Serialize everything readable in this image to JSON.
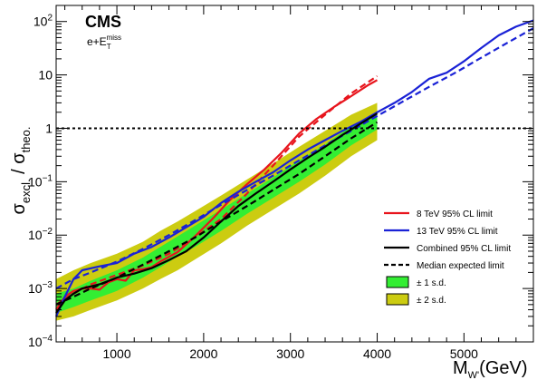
{
  "experiment_label": "CMS",
  "channel_label": {
    "base": "e+E",
    "sub": "T",
    "sup": "miss"
  },
  "axis_titles": {
    "x": {
      "main": "M",
      "sub": "W'",
      "unit": "(GeV)"
    },
    "y": {
      "sigma1": "σ",
      "sub1": "excl.",
      "slash": " / ",
      "sigma2": "σ",
      "sub2": "theo."
    }
  },
  "legend": [
    {
      "key": "obs8",
      "label": "8 TeV 95% CL limit",
      "kind": "line",
      "color": "#e8141c",
      "dash": false
    },
    {
      "key": "obs13",
      "label": "13 TeV 95% CL limit",
      "kind": "line",
      "color": "#1a22d6",
      "dash": false
    },
    {
      "key": "comb",
      "label": "Combined 95% CL limit",
      "kind": "line",
      "color": "#000000",
      "dash": false
    },
    {
      "key": "exp",
      "label": "Median expected limit",
      "kind": "line",
      "color": "#000000",
      "dash": true
    },
    {
      "key": "band1",
      "label": "± 1 s.d.",
      "kind": "box",
      "color": "#33ee33"
    },
    {
      "key": "band2",
      "label": "± 2 s.d.",
      "kind": "box",
      "color": "#cccc11"
    }
  ],
  "chart_data": {
    "type": "line",
    "x_axis": {
      "min": 300,
      "max": 5800,
      "scale": "linear",
      "ticks": [
        1000,
        2000,
        3000,
        4000,
        5000
      ],
      "tick_labels": [
        "1000",
        "2000",
        "3000",
        "4000",
        "5000"
      ]
    },
    "y_axis": {
      "min": 0.0001,
      "max": 200,
      "scale": "log",
      "ticks": [
        0.0001,
        0.001,
        0.01,
        0.1,
        1,
        10,
        100
      ],
      "tick_labels": [
        {
          "base": "10",
          "exp": "−4"
        },
        {
          "base": "10",
          "exp": "−3"
        },
        {
          "base": "10",
          "exp": "−2"
        },
        {
          "base": "10",
          "exp": "−1"
        },
        {
          "text": "1"
        },
        {
          "text": "10"
        },
        {
          "base": "10",
          "exp": "2"
        }
      ]
    },
    "reference_line": {
      "y": 1,
      "style": "dotted",
      "color": "#000000"
    },
    "legend_position": "bottom-right",
    "series": [
      {
        "name": "8 TeV 95% CL limit",
        "key": "obs8",
        "color": "#e8141c",
        "dash": false,
        "x": [
          300,
          400,
          500,
          600,
          700,
          800,
          900,
          1000,
          1100,
          1200,
          1300,
          1400,
          1500,
          1700,
          1900,
          2100,
          2300,
          2500,
          2700,
          2900,
          3100,
          3300,
          3500,
          3700,
          3900,
          4000
        ],
        "y": [
          0.0004,
          0.0007,
          0.0009,
          0.001,
          0.001,
          0.00095,
          0.0013,
          0.0015,
          0.0014,
          0.0022,
          0.0023,
          0.0025,
          0.0032,
          0.0048,
          0.0095,
          0.02,
          0.045,
          0.09,
          0.17,
          0.35,
          0.8,
          1.5,
          2.5,
          4,
          6.5,
          8
        ]
      },
      {
        "name": "8 TeV expected",
        "key": "exp8",
        "color": "#e8141c",
        "dash": true,
        "x": [
          300,
          500,
          700,
          1000,
          1300,
          1600,
          1900,
          2200,
          2500,
          2800,
          3100,
          3400,
          3700,
          4000
        ],
        "y": [
          0.0005,
          0.0008,
          0.0012,
          0.0018,
          0.0027,
          0.0045,
          0.009,
          0.02,
          0.06,
          0.2,
          0.7,
          1.8,
          4.5,
          9.5
        ]
      },
      {
        "name": "13 TeV 95% CL limit",
        "key": "obs13",
        "color": "#1a22d6",
        "dash": false,
        "x": [
          300,
          400,
          500,
          600,
          800,
          1000,
          1200,
          1400,
          1600,
          1800,
          2000,
          2200,
          2400,
          2600,
          2800,
          3000,
          3200,
          3400,
          3600,
          3800,
          4000,
          4200,
          4400,
          4600,
          4800,
          5000,
          5200,
          5400,
          5600,
          5800
        ],
        "y": [
          0.0003,
          0.0007,
          0.0015,
          0.0022,
          0.0026,
          0.003,
          0.0045,
          0.006,
          0.009,
          0.014,
          0.022,
          0.04,
          0.065,
          0.1,
          0.15,
          0.25,
          0.4,
          0.6,
          0.9,
          1.3,
          2,
          3,
          4.8,
          8.5,
          11,
          18,
          32,
          55,
          80,
          105
        ]
      },
      {
        "name": "13 TeV expected",
        "key": "exp13",
        "color": "#1a22d6",
        "dash": true,
        "x": [
          300,
          500,
          700,
          1000,
          1300,
          1600,
          1900,
          2200,
          2500,
          2800,
          3100,
          3400,
          3700,
          4000,
          4300,
          4600,
          4900,
          5200,
          5500,
          5800
        ],
        "y": [
          0.001,
          0.0015,
          0.002,
          0.0032,
          0.0055,
          0.01,
          0.019,
          0.037,
          0.07,
          0.13,
          0.25,
          0.48,
          0.9,
          1.7,
          3.2,
          6,
          11,
          21,
          40,
          75
        ]
      },
      {
        "name": "Combined 95% CL limit",
        "key": "comb",
        "color": "#000000",
        "dash": false,
        "x": [
          300,
          400,
          500,
          600,
          800,
          1000,
          1200,
          1400,
          1600,
          1800,
          2000,
          2200,
          2400,
          2600,
          2800,
          3000,
          3200,
          3400,
          3600,
          3800,
          4000
        ],
        "y": [
          0.00035,
          0.0006,
          0.0008,
          0.001,
          0.0012,
          0.0016,
          0.0019,
          0.0024,
          0.0034,
          0.005,
          0.009,
          0.018,
          0.035,
          0.06,
          0.1,
          0.17,
          0.28,
          0.45,
          0.75,
          1.2,
          1.9
        ]
      },
      {
        "name": "Median expected limit",
        "key": "exp",
        "color": "#000000",
        "dash": true,
        "x": [
          300,
          500,
          700,
          1000,
          1300,
          1600,
          1900,
          2200,
          2500,
          2800,
          3100,
          3400,
          3700,
          4000
        ],
        "y": [
          0.0005,
          0.0007,
          0.001,
          0.0016,
          0.0028,
          0.005,
          0.009,
          0.018,
          0.035,
          0.07,
          0.14,
          0.3,
          0.65,
          1.3
        ]
      }
    ],
    "bands": [
      {
        "name": "± 2 s.d.",
        "key": "band2",
        "color": "#cccc11",
        "x": [
          300,
          500,
          700,
          1000,
          1300,
          1500,
          1700,
          1900,
          2200,
          2500,
          2800,
          3100,
          3400,
          3700,
          4000
        ],
        "lower": [
          0.00025,
          0.0003,
          0.0004,
          0.0006,
          0.001,
          0.0015,
          0.0022,
          0.0035,
          0.007,
          0.015,
          0.03,
          0.06,
          0.13,
          0.3,
          0.6
        ],
        "upper": [
          0.0015,
          0.0022,
          0.003,
          0.0045,
          0.0075,
          0.012,
          0.018,
          0.028,
          0.055,
          0.11,
          0.22,
          0.45,
          0.9,
          1.8,
          3
        ]
      },
      {
        "name": "± 1 s.d.",
        "key": "band1",
        "color": "#33ee33",
        "x": [
          300,
          500,
          700,
          1000,
          1300,
          1500,
          1700,
          1900,
          2200,
          2500,
          2800,
          3100,
          3400,
          3700,
          4000
        ],
        "lower": [
          0.00035,
          0.00045,
          0.0006,
          0.0009,
          0.0016,
          0.0025,
          0.004,
          0.006,
          0.012,
          0.025,
          0.05,
          0.1,
          0.21,
          0.48,
          0.95
        ],
        "upper": [
          0.0008,
          0.001,
          0.0014,
          0.0022,
          0.0038,
          0.006,
          0.0095,
          0.015,
          0.03,
          0.06,
          0.12,
          0.25,
          0.5,
          1.1,
          1.9
        ]
      }
    ]
  }
}
